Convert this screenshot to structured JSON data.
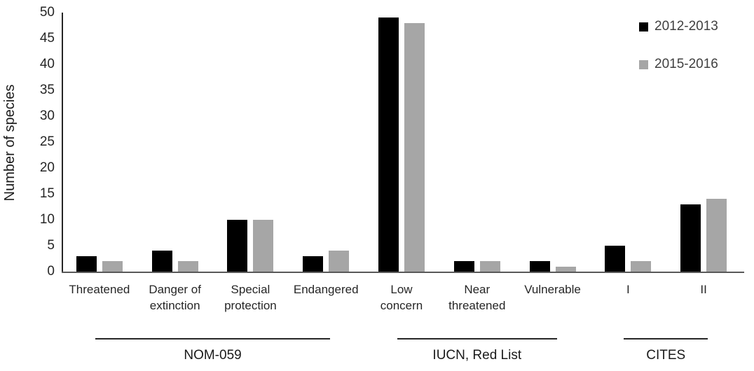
{
  "chart_data": {
    "type": "bar",
    "title": "",
    "xlabel": "",
    "ylabel": "Number of species",
    "ylim": [
      0,
      50
    ],
    "ytick_step": 5,
    "grid": false,
    "legend_position": "top-right",
    "categories": [
      "Threatened",
      "Danger of\nextinction",
      "Special\nprotection",
      "Endangered",
      "Low\nconcern",
      "Near\nthreatened",
      "Vulnerable",
      "I",
      "II"
    ],
    "series": [
      {
        "name": "2012-2013",
        "color": "#000000",
        "values": [
          3,
          4,
          10,
          3,
          49,
          2,
          2,
          5,
          13
        ]
      },
      {
        "name": "2015-2016",
        "color": "#a6a6a6",
        "values": [
          2,
          2,
          10,
          4,
          48,
          2,
          1,
          2,
          14
        ]
      }
    ],
    "groups": [
      {
        "label": "NOM-059",
        "start": 0,
        "end": 3
      },
      {
        "label": "IUCN, Red List",
        "start": 4,
        "end": 6
      },
      {
        "label": "CITES",
        "start": 7,
        "end": 8
      }
    ],
    "colors": {
      "axis": "#262626",
      "baseline": "#595959",
      "tick_text": "#262626",
      "legend_text": "#404040"
    }
  }
}
